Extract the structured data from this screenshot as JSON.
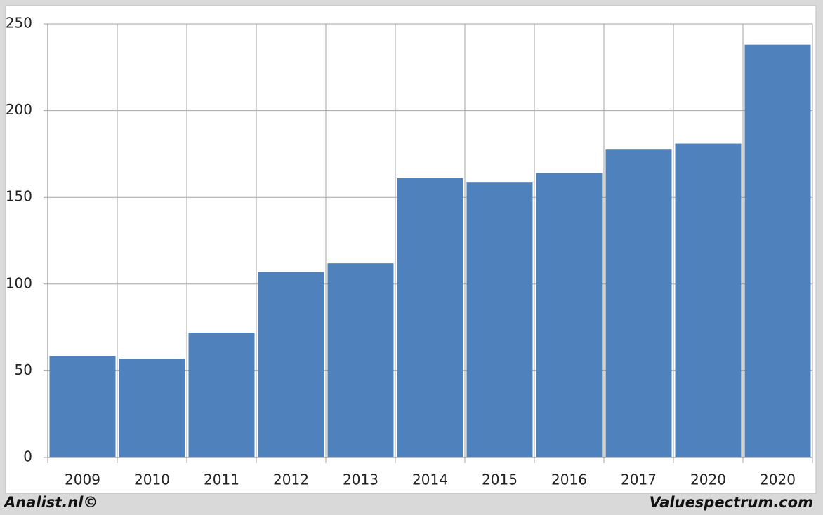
{
  "chart_data": {
    "type": "bar",
    "categories": [
      "2009",
      "2010",
      "2011",
      "2012",
      "2013",
      "2014",
      "2015",
      "2016",
      "2017",
      "2020",
      "2020"
    ],
    "values": [
      58.5,
      57,
      72,
      107,
      112,
      161,
      158.5,
      164,
      177.5,
      181,
      238
    ],
    "color": "#4f81bd",
    "ylim": [
      0,
      250
    ],
    "yticks": [
      0,
      50,
      100,
      150,
      200,
      250
    ],
    "grid": true,
    "source_left": "Analist.nl©",
    "source_right": "Valuespectrum.com"
  }
}
